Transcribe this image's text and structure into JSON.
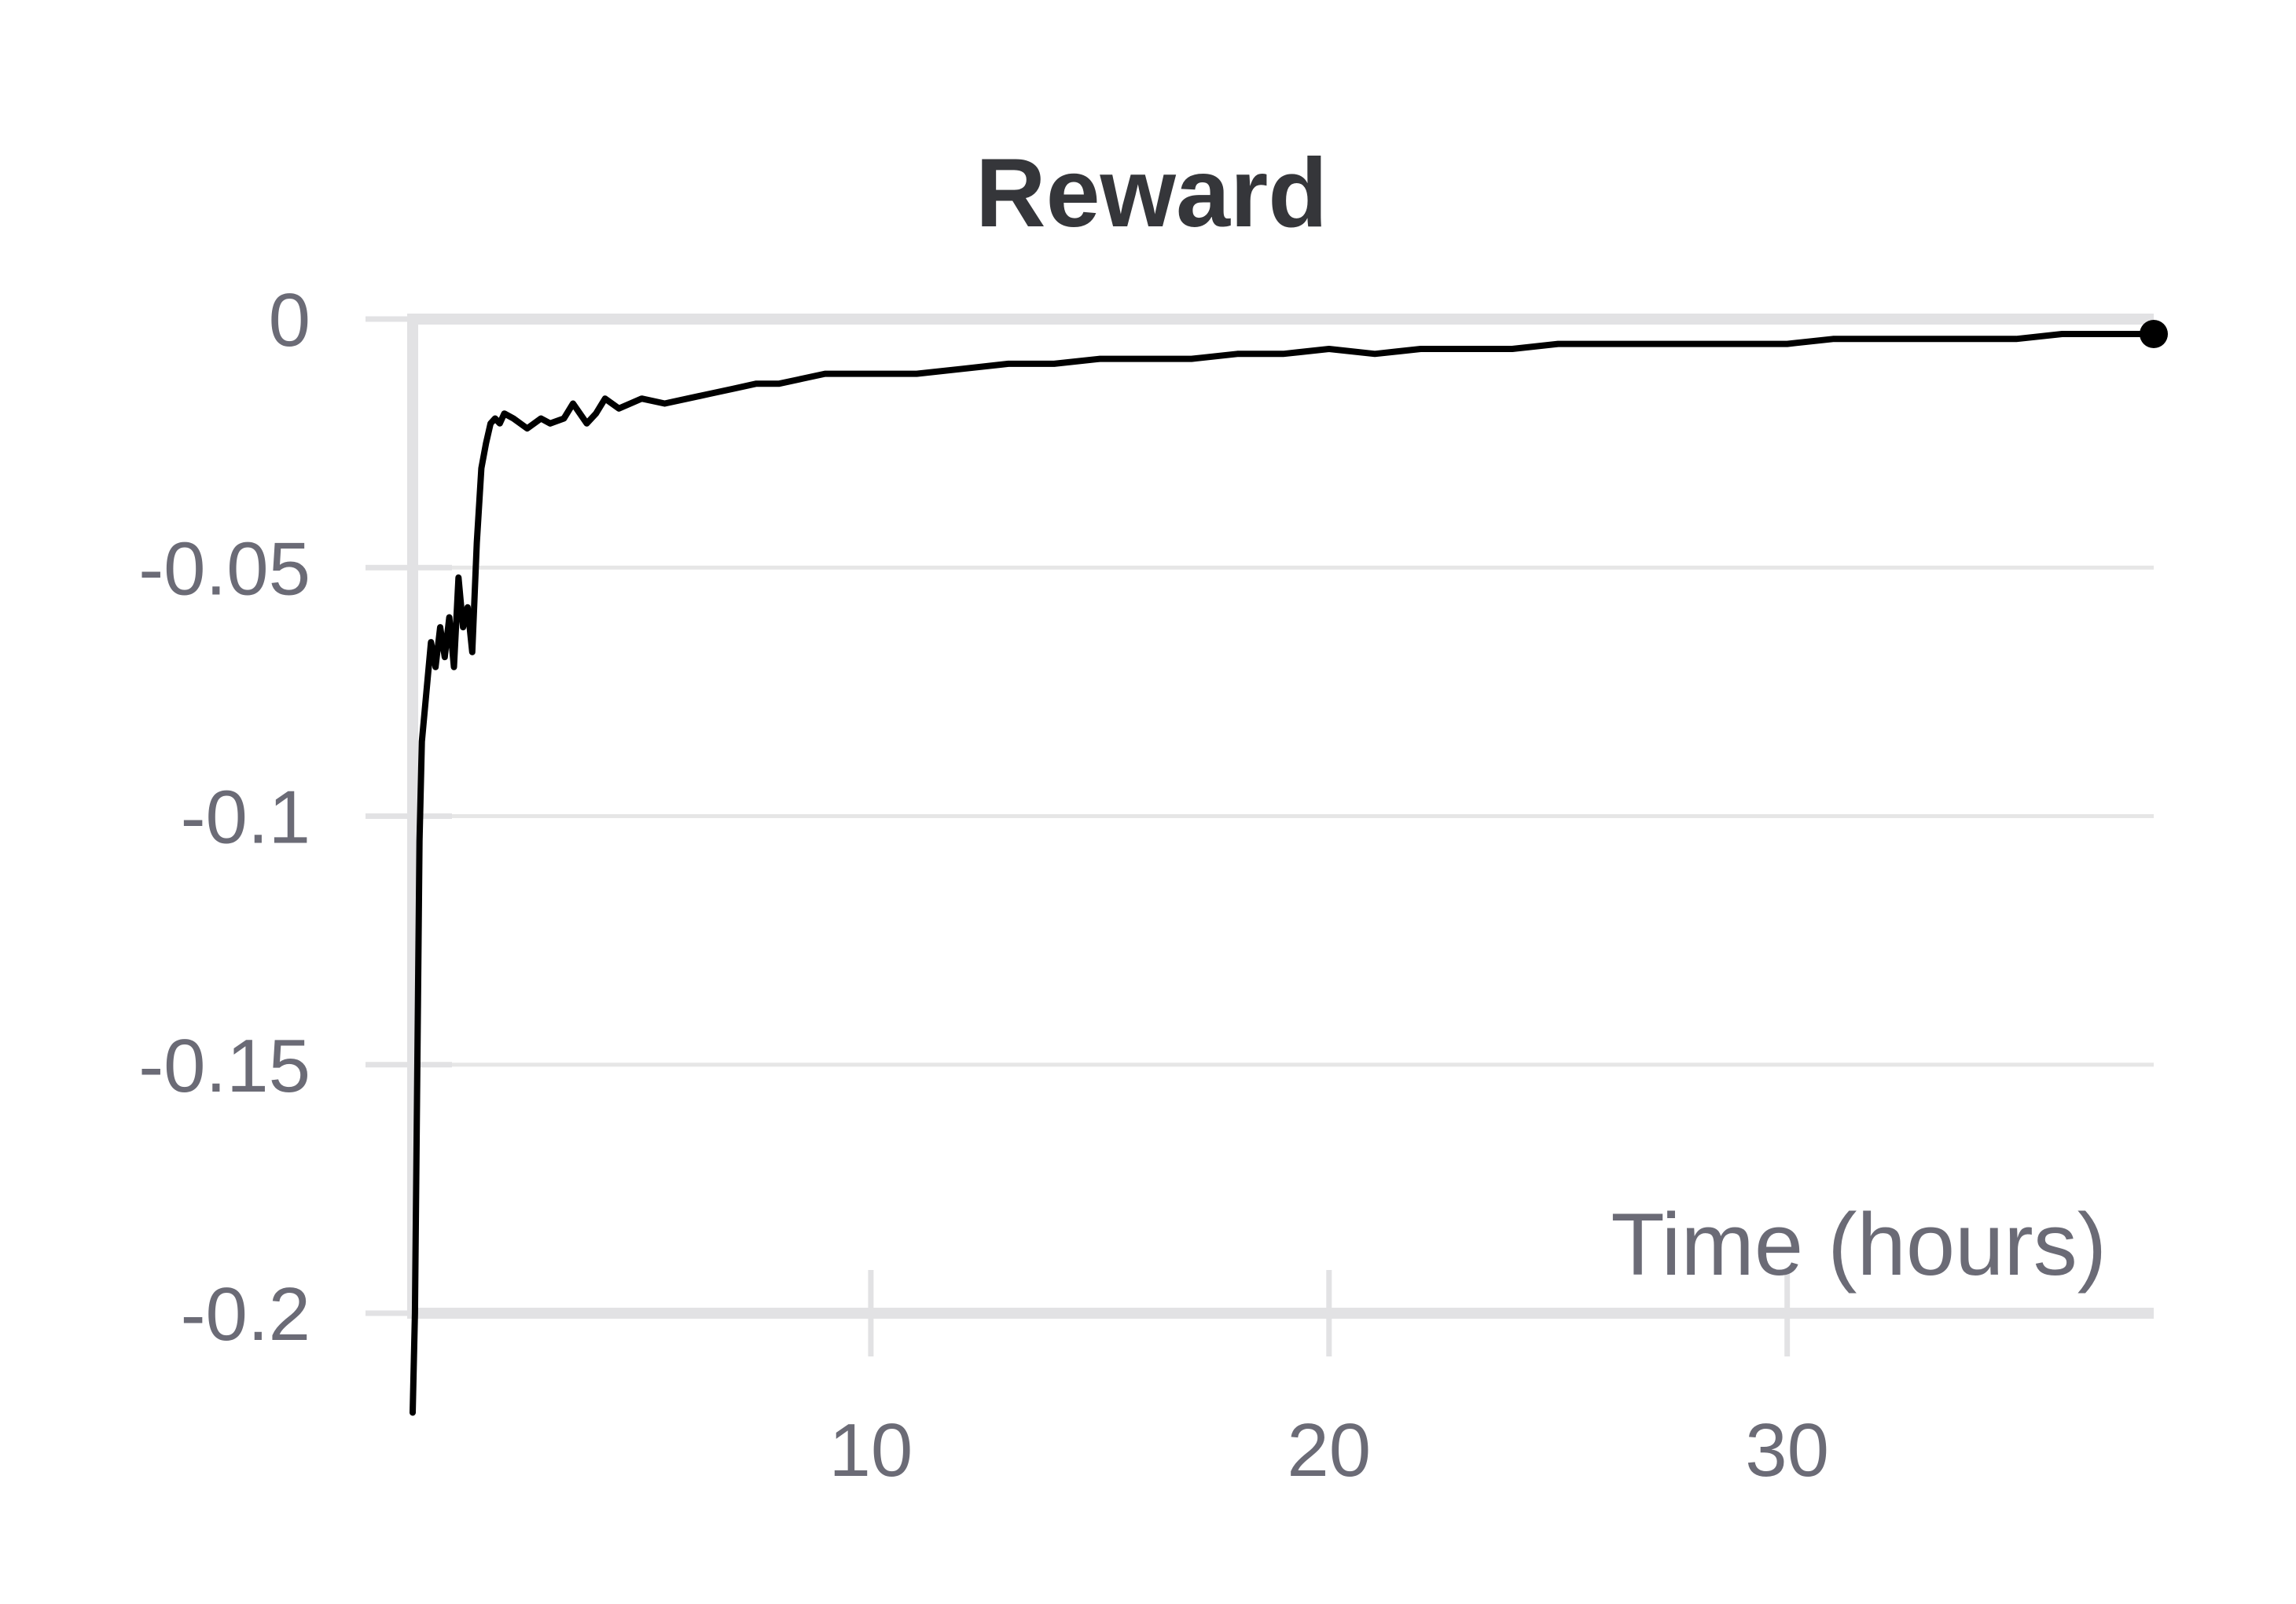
{
  "chart_data": {
    "type": "line",
    "title": "Reward",
    "xlabel": "Time (hours)",
    "ylabel": "",
    "xlim": [
      0,
      38
    ],
    "ylim": [
      -0.2,
      0
    ],
    "xticks": [
      10,
      20,
      30
    ],
    "xtick_labels": [
      "10",
      "20",
      "30"
    ],
    "yticks": [
      0,
      -0.05,
      -0.1,
      -0.15,
      -0.2
    ],
    "ytick_labels": [
      "0",
      "-0.05",
      "-0.1",
      "-0.15",
      "-0.2"
    ],
    "grid": true,
    "colors": {
      "series": "#000000",
      "grid": "#e6e6e6",
      "axis": "#e2e2e4",
      "title": "#35363a",
      "ticks": "#6b6b76"
    },
    "series": [
      {
        "x": [
          0,
          0.05,
          0.15,
          0.2,
          0.3,
          0.4,
          0.5,
          0.6,
          0.7,
          0.8,
          0.9,
          1.0,
          1.1,
          1.2,
          1.3,
          1.4,
          1.5,
          1.6,
          1.7,
          1.8,
          1.9,
          2.0,
          2.2,
          2.5,
          2.8,
          3.0,
          3.3,
          3.5,
          3.8,
          4.0,
          4.2,
          4.5,
          5.0,
          5.5,
          6.0,
          6.5,
          7.0,
          7.5,
          8.0,
          8.5,
          9.0,
          9.5,
          10,
          11,
          12,
          13,
          14,
          15,
          16,
          17,
          18,
          19,
          20,
          21,
          22,
          23,
          24,
          25,
          26,
          27,
          28,
          29,
          30,
          31,
          32,
          33,
          34,
          35,
          36,
          37,
          38
        ],
        "y": [
          -0.22,
          -0.2,
          -0.105,
          -0.085,
          -0.075,
          -0.065,
          -0.07,
          -0.062,
          -0.068,
          -0.06,
          -0.07,
          -0.052,
          -0.062,
          -0.058,
          -0.067,
          -0.045,
          -0.03,
          -0.025,
          -0.021,
          -0.02,
          -0.021,
          -0.019,
          -0.02,
          -0.022,
          -0.02,
          -0.021,
          -0.02,
          -0.017,
          -0.021,
          -0.019,
          -0.016,
          -0.018,
          -0.016,
          -0.017,
          -0.016,
          -0.015,
          -0.014,
          -0.013,
          -0.013,
          -0.012,
          -0.011,
          -0.011,
          -0.011,
          -0.011,
          -0.01,
          -0.009,
          -0.009,
          -0.008,
          -0.008,
          -0.008,
          -0.007,
          -0.007,
          -0.006,
          -0.007,
          -0.006,
          -0.006,
          -0.006,
          -0.005,
          -0.005,
          -0.005,
          -0.005,
          -0.005,
          -0.005,
          -0.004,
          -0.004,
          -0.004,
          -0.004,
          -0.004,
          -0.003,
          -0.003,
          -0.003
        ]
      }
    ]
  }
}
